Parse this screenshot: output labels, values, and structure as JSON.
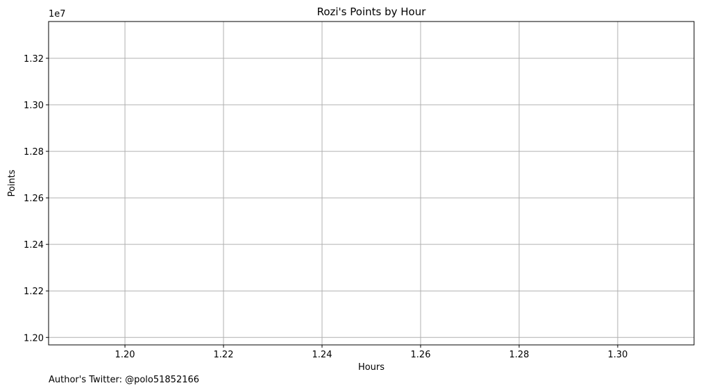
{
  "chart_data": {
    "type": "line",
    "title": "Rozi's Points by Hour",
    "xlabel": "Hours",
    "ylabel": "Points",
    "y_offset_label": "1e7",
    "xlim": [
      1.1845,
      1.3155
    ],
    "ylim": [
      1.1968,
      1.3358
    ],
    "x_ticks": [
      1.2,
      1.22,
      1.24,
      1.26,
      1.28,
      1.3
    ],
    "x_tick_labels": [
      "1.20",
      "1.22",
      "1.24",
      "1.26",
      "1.28",
      "1.30"
    ],
    "y_ticks": [
      1.2,
      1.22,
      1.24,
      1.26,
      1.28,
      1.3,
      1.32
    ],
    "y_tick_labels": [
      "1.20",
      "1.22",
      "1.24",
      "1.26",
      "1.28",
      "1.30",
      "1.32"
    ],
    "grid": true,
    "series": [
      {
        "x": [],
        "y": []
      }
    ]
  },
  "footer": {
    "credit": "Author's Twitter: @polo51852166"
  },
  "colors": {
    "grid": "#b0b0b0",
    "axes": "#000000"
  }
}
